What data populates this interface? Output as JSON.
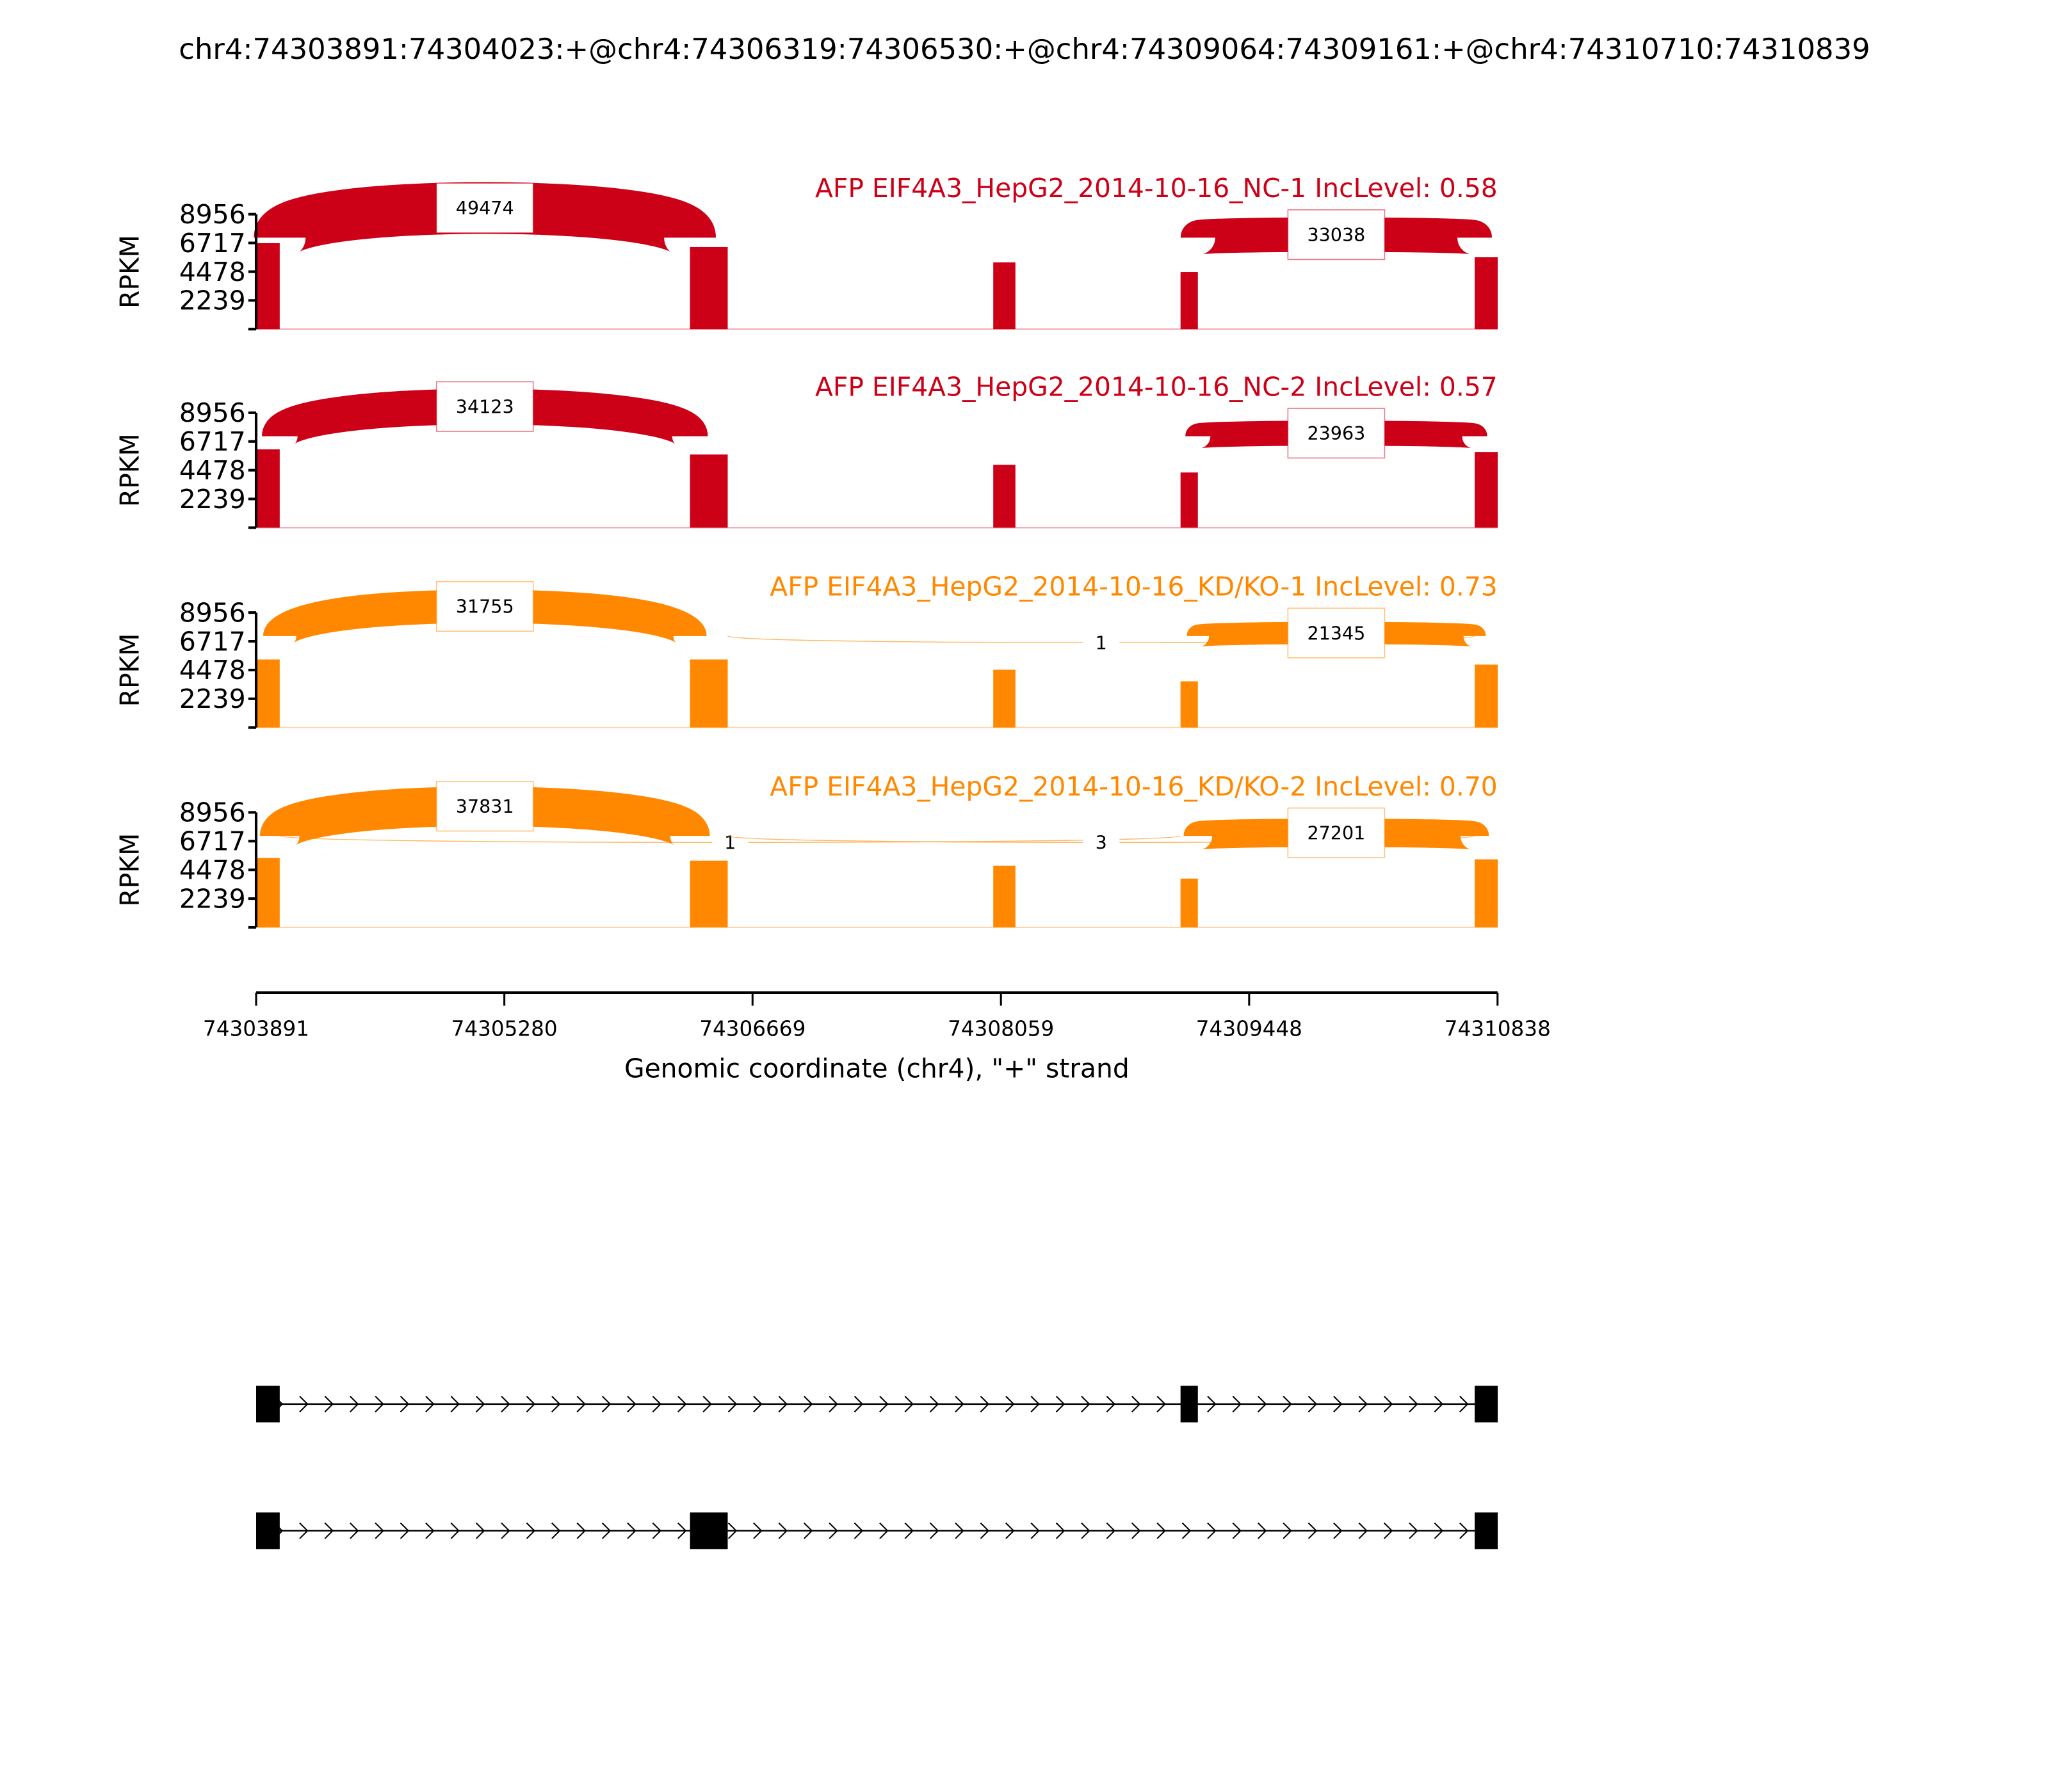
{
  "title": "chr4:74303891:74304023:+@chr4:74306319:74306530:+@chr4:74309064:74309161:+@chr4:74310710:74310839",
  "chart_data": {
    "type": "area",
    "subtype": "sashimi",
    "title": "chr4:74303891:74304023:+@chr4:74306319:74306530:+@chr4:74309064:74309161:+@chr4:74310710:74310839",
    "xlabel": "Genomic coordinate (chr4), \"+\" strand",
    "ylabel": "RPKM",
    "xlim": [
      74303891,
      74310838
    ],
    "xticks": [
      "74303891",
      "74305280",
      "74306669",
      "74308059",
      "74309448",
      "74310838"
    ],
    "ylim": [
      0,
      8956
    ],
    "yticks": [
      "2239",
      "4478",
      "6717",
      "8956"
    ],
    "grid": false,
    "panels": [
      {
        "title": "AFP EIF4A3_HepG2_2014-10-16_NC-1 IncLevel: 0.58",
        "inc_level": 0.58,
        "color": "#cc0017",
        "coverage": [
          {
            "start": 74303891,
            "end": 74304023,
            "value": 6700
          },
          {
            "start": 74306319,
            "end": 74306530,
            "value": 6400
          },
          {
            "start": 74308016,
            "end": 74308140,
            "value": 5200
          },
          {
            "start": 74309064,
            "end": 74309161,
            "value": 4450
          },
          {
            "start": 74310710,
            "end": 74310839,
            "value": 5600
          }
        ],
        "junctions": [
          {
            "from": 74304023,
            "to": 74306319,
            "count": "49474"
          },
          {
            "from": 74309161,
            "to": 74310710,
            "count": "33038"
          }
        ]
      },
      {
        "title": "AFP EIF4A3_HepG2_2014-10-16_NC-2 IncLevel: 0.57",
        "inc_level": 0.57,
        "color": "#cc0017",
        "coverage": [
          {
            "start": 74303891,
            "end": 74304023,
            "value": 6100
          },
          {
            "start": 74306319,
            "end": 74306530,
            "value": 5700
          },
          {
            "start": 74308016,
            "end": 74308140,
            "value": 4900
          },
          {
            "start": 74309064,
            "end": 74309161,
            "value": 4300
          },
          {
            "start": 74310710,
            "end": 74310839,
            "value": 5900
          }
        ],
        "junctions": [
          {
            "from": 74304023,
            "to": 74306319,
            "count": "34123"
          },
          {
            "from": 74309161,
            "to": 74310710,
            "count": "23963"
          }
        ]
      },
      {
        "title": "AFP EIF4A3_HepG2_2014-10-16_KD/KO-1 IncLevel: 0.73",
        "inc_level": 0.73,
        "color": "#ff8800",
        "coverage": [
          {
            "start": 74303891,
            "end": 74304023,
            "value": 5300
          },
          {
            "start": 74306319,
            "end": 74306530,
            "value": 5300
          },
          {
            "start": 74308016,
            "end": 74308140,
            "value": 4500
          },
          {
            "start": 74309064,
            "end": 74309161,
            "value": 3600
          },
          {
            "start": 74310710,
            "end": 74310839,
            "value": 4900
          }
        ],
        "junctions": [
          {
            "from": 74304023,
            "to": 74306319,
            "count": "31755"
          },
          {
            "from": 74306530,
            "to": 74310710,
            "count": "1"
          },
          {
            "from": 74309161,
            "to": 74310710,
            "count": "21345"
          }
        ]
      },
      {
        "title": "AFP EIF4A3_HepG2_2014-10-16_KD/KO-2 IncLevel: 0.70",
        "inc_level": 0.7,
        "color": "#ff8800",
        "coverage": [
          {
            "start": 74303891,
            "end": 74304023,
            "value": 5400
          },
          {
            "start": 74306319,
            "end": 74306530,
            "value": 5200
          },
          {
            "start": 74308016,
            "end": 74308140,
            "value": 4800
          },
          {
            "start": 74309064,
            "end": 74309161,
            "value": 3800
          },
          {
            "start": 74310710,
            "end": 74310839,
            "value": 5300
          }
        ],
        "junctions": [
          {
            "from": 74304023,
            "to": 74306319,
            "count": "37831"
          },
          {
            "from": 74304023,
            "to": 74309064,
            "count": "1"
          },
          {
            "from": 74306530,
            "to": 74310710,
            "count": "3"
          },
          {
            "from": 74309161,
            "to": 74310710,
            "count": "27201"
          }
        ]
      }
    ],
    "transcripts": [
      {
        "exons": [
          [
            74303891,
            74304023
          ],
          [
            74309064,
            74309161
          ],
          [
            74310710,
            74310839
          ]
        ]
      },
      {
        "exons": [
          [
            74303891,
            74304023
          ],
          [
            74306319,
            74306530
          ],
          [
            74310710,
            74310839
          ]
        ]
      }
    ]
  }
}
